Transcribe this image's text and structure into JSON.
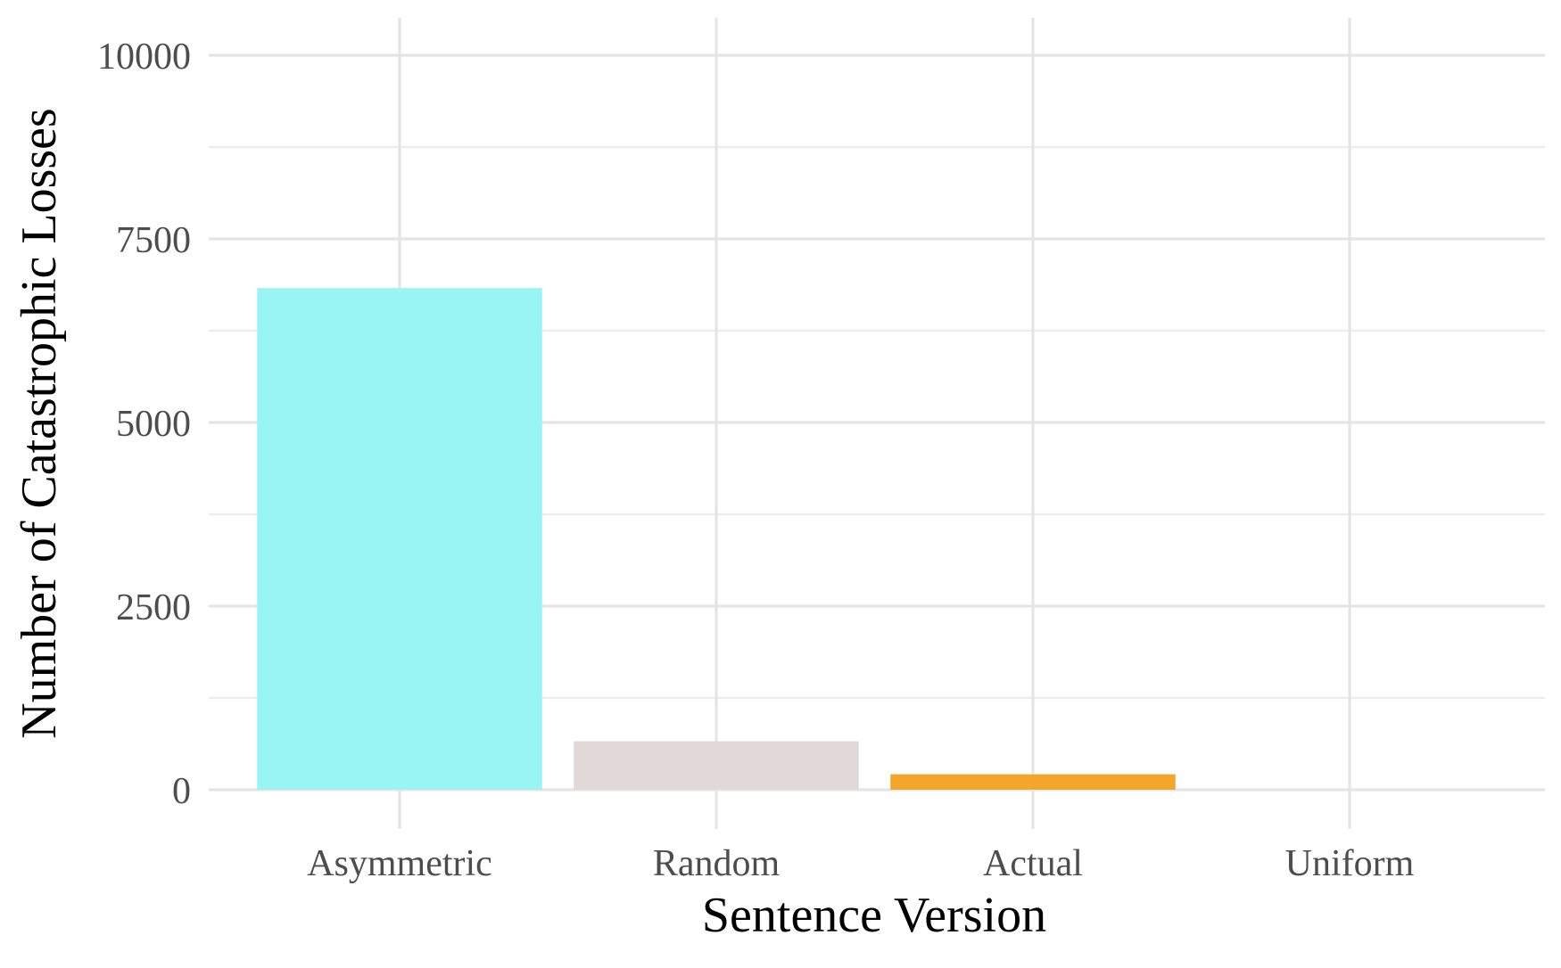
{
  "chart_data": {
    "type": "bar",
    "categories": [
      "Asymmetric",
      "Random",
      "Actual",
      "Uniform"
    ],
    "values": [
      6830,
      660,
      210,
      0
    ],
    "colors": [
      "#99f5f4",
      "#e1d8d8",
      "#f4a52b",
      "#ffffff"
    ],
    "title": "",
    "xlabel": "Sentence Version",
    "ylabel": "Number of Catastrophic Losses",
    "ylim": [
      0,
      10000
    ],
    "yticks": [
      0,
      2500,
      5000,
      7500,
      10000
    ],
    "ytick_labels": [
      "0",
      "2500",
      "5000",
      "7500",
      "10000"
    ],
    "grid": true,
    "legend": "none"
  }
}
